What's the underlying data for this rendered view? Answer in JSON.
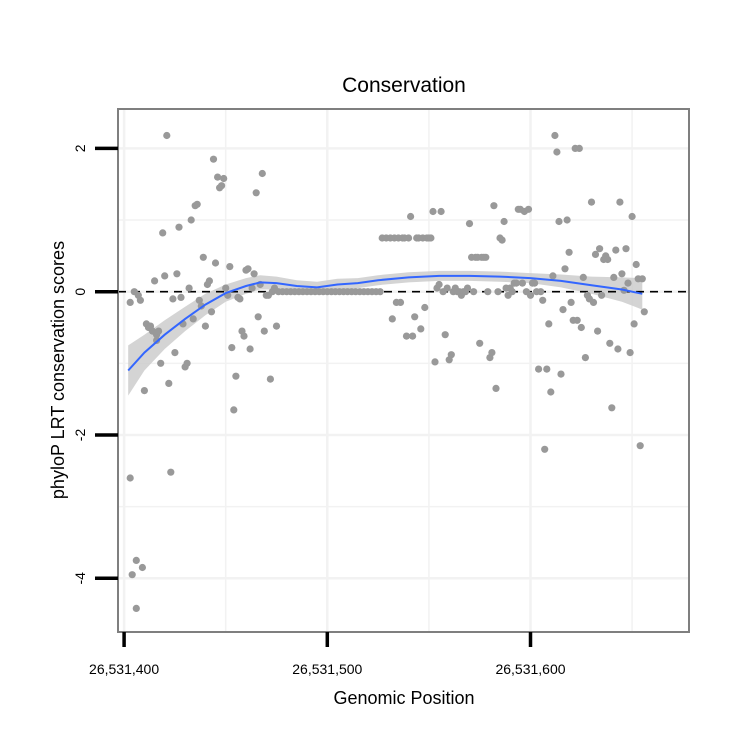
{
  "chart_data": {
    "type": "scatter",
    "title": "Conservation",
    "xlabel": "Genomic Position",
    "ylabel": "phyloP LRT conservation scores",
    "xlim": [
      26531397,
      26531678
    ],
    "ylim": [
      -4.75,
      2.55
    ],
    "x_ticks": [
      {
        "value": 26531400,
        "label": "26,531,400"
      },
      {
        "value": 26531500,
        "label": "26,531,500"
      },
      {
        "value": 26531600,
        "label": "26,531,600"
      }
    ],
    "y_ticks": [
      {
        "value": -4,
        "label": "-4"
      },
      {
        "value": -2,
        "label": "-2"
      },
      {
        "value": 0,
        "label": "0"
      },
      {
        "value": 2,
        "label": "2"
      }
    ],
    "grid": true,
    "reference_line": {
      "y": 0,
      "style": "dashed"
    },
    "colors": {
      "points": "#999999",
      "smooth_line": "#3366ff",
      "confidence_band": "#cccccc",
      "panel_border": "#7f7f7f",
      "gridline": "#f2f2f2"
    },
    "points": [
      {
        "x": 26531403,
        "y": -0.15
      },
      {
        "x": 26531403,
        "y": -2.6
      },
      {
        "x": 26531404,
        "y": -3.95
      },
      {
        "x": 26531405,
        "y": 0.0
      },
      {
        "x": 26531406,
        "y": -4.42
      },
      {
        "x": 26531406,
        "y": -3.75
      },
      {
        "x": 26531407,
        "y": -0.05
      },
      {
        "x": 26531408,
        "y": -0.12
      },
      {
        "x": 26531409,
        "y": -3.85
      },
      {
        "x": 26531410,
        "y": -1.38
      },
      {
        "x": 26531411,
        "y": -0.45
      },
      {
        "x": 26531412,
        "y": -0.5
      },
      {
        "x": 26531413,
        "y": -0.48
      },
      {
        "x": 26531414,
        "y": -0.55
      },
      {
        "x": 26531415,
        "y": 0.15
      },
      {
        "x": 26531416,
        "y": -0.6
      },
      {
        "x": 26531416,
        "y": -0.68
      },
      {
        "x": 26531417,
        "y": -0.55
      },
      {
        "x": 26531418,
        "y": -1.0
      },
      {
        "x": 26531419,
        "y": 0.82
      },
      {
        "x": 26531420,
        "y": 0.22
      },
      {
        "x": 26531421,
        "y": 2.18
      },
      {
        "x": 26531422,
        "y": -1.28
      },
      {
        "x": 26531423,
        "y": -2.52
      },
      {
        "x": 26531424,
        "y": -0.1
      },
      {
        "x": 26531425,
        "y": -0.85
      },
      {
        "x": 26531426,
        "y": 0.25
      },
      {
        "x": 26531427,
        "y": 0.9
      },
      {
        "x": 26531428,
        "y": -0.08
      },
      {
        "x": 26531429,
        "y": -0.45
      },
      {
        "x": 26531430,
        "y": -1.05
      },
      {
        "x": 26531431,
        "y": -1.0
      },
      {
        "x": 26531432,
        "y": 0.05
      },
      {
        "x": 26531433,
        "y": 1.0
      },
      {
        "x": 26531434,
        "y": -0.38
      },
      {
        "x": 26531435,
        "y": 1.2
      },
      {
        "x": 26531436,
        "y": 1.22
      },
      {
        "x": 26531437,
        "y": -0.12
      },
      {
        "x": 26531438,
        "y": -0.2
      },
      {
        "x": 26531439,
        "y": 0.48
      },
      {
        "x": 26531440,
        "y": -0.48
      },
      {
        "x": 26531441,
        "y": 0.1
      },
      {
        "x": 26531442,
        "y": 0.15
      },
      {
        "x": 26531443,
        "y": -0.28
      },
      {
        "x": 26531444,
        "y": 1.85
      },
      {
        "x": 26531445,
        "y": 0.4
      },
      {
        "x": 26531446,
        "y": 1.6
      },
      {
        "x": 26531447,
        "y": 1.45
      },
      {
        "x": 26531448,
        "y": 1.48
      },
      {
        "x": 26531449,
        "y": 1.58
      },
      {
        "x": 26531450,
        "y": 0.05
      },
      {
        "x": 26531451,
        "y": -0.05
      },
      {
        "x": 26531452,
        "y": 0.35
      },
      {
        "x": 26531453,
        "y": -0.78
      },
      {
        "x": 26531454,
        "y": -1.65
      },
      {
        "x": 26531455,
        "y": -1.18
      },
      {
        "x": 26531456,
        "y": -0.08
      },
      {
        "x": 26531457,
        "y": -0.1
      },
      {
        "x": 26531458,
        "y": -0.55
      },
      {
        "x": 26531459,
        "y": -0.62
      },
      {
        "x": 26531460,
        "y": 0.3
      },
      {
        "x": 26531461,
        "y": 0.32
      },
      {
        "x": 26531462,
        "y": -0.8
      },
      {
        "x": 26531463,
        "y": 0.05
      },
      {
        "x": 26531464,
        "y": 0.25
      },
      {
        "x": 26531465,
        "y": 1.38
      },
      {
        "x": 26531466,
        "y": -0.35
      },
      {
        "x": 26531467,
        "y": 0.1
      },
      {
        "x": 26531468,
        "y": 1.65
      },
      {
        "x": 26531469,
        "y": -0.55
      },
      {
        "x": 26531470,
        "y": -0.05
      },
      {
        "x": 26531471,
        "y": -0.05
      },
      {
        "x": 26531472,
        "y": -1.22
      },
      {
        "x": 26531473,
        "y": 0.0
      },
      {
        "x": 26531474,
        "y": 0.05
      },
      {
        "x": 26531475,
        "y": -0.48
      },
      {
        "x": 26531476,
        "y": 0.0
      },
      {
        "x": 26531478,
        "y": 0.0
      },
      {
        "x": 26531480,
        "y": 0.0
      },
      {
        "x": 26531482,
        "y": 0.0
      },
      {
        "x": 26531484,
        "y": 0.0
      },
      {
        "x": 26531486,
        "y": 0.0
      },
      {
        "x": 26531488,
        "y": 0.0
      },
      {
        "x": 26531490,
        "y": 0.0
      },
      {
        "x": 26531492,
        "y": 0.0
      },
      {
        "x": 26531494,
        "y": 0.0
      },
      {
        "x": 26531496,
        "y": 0.0
      },
      {
        "x": 26531498,
        "y": 0.0
      },
      {
        "x": 26531500,
        "y": 0.0
      },
      {
        "x": 26531502,
        "y": 0.0
      },
      {
        "x": 26531504,
        "y": 0.0
      },
      {
        "x": 26531506,
        "y": 0.0
      },
      {
        "x": 26531508,
        "y": 0.0
      },
      {
        "x": 26531510,
        "y": 0.0
      },
      {
        "x": 26531512,
        "y": 0.0
      },
      {
        "x": 26531514,
        "y": 0.0
      },
      {
        "x": 26531516,
        "y": 0.0
      },
      {
        "x": 26531518,
        "y": 0.0
      },
      {
        "x": 26531520,
        "y": 0.0
      },
      {
        "x": 26531522,
        "y": 0.0
      },
      {
        "x": 26531524,
        "y": 0.0
      },
      {
        "x": 26531526,
        "y": 0.0
      },
      {
        "x": 26531527,
        "y": 0.75
      },
      {
        "x": 26531529,
        "y": 0.75
      },
      {
        "x": 26531531,
        "y": 0.75
      },
      {
        "x": 26531532,
        "y": -0.38
      },
      {
        "x": 26531533,
        "y": 0.75
      },
      {
        "x": 26531534,
        "y": -0.15
      },
      {
        "x": 26531535,
        "y": 0.75
      },
      {
        "x": 26531536,
        "y": -0.15
      },
      {
        "x": 26531537,
        "y": 0.75
      },
      {
        "x": 26531538,
        "y": 0.75
      },
      {
        "x": 26531539,
        "y": -0.62
      },
      {
        "x": 26531540,
        "y": 0.75
      },
      {
        "x": 26531541,
        "y": 1.05
      },
      {
        "x": 26531542,
        "y": -0.62
      },
      {
        "x": 26531543,
        "y": -0.35
      },
      {
        "x": 26531544,
        "y": 0.75
      },
      {
        "x": 26531545,
        "y": 0.75
      },
      {
        "x": 26531546,
        "y": -0.52
      },
      {
        "x": 26531547,
        "y": 0.75
      },
      {
        "x": 26531548,
        "y": -0.22
      },
      {
        "x": 26531549,
        "y": 0.75
      },
      {
        "x": 26531550,
        "y": 0.75
      },
      {
        "x": 26531551,
        "y": 0.75
      },
      {
        "x": 26531552,
        "y": 1.12
      },
      {
        "x": 26531553,
        "y": -0.98
      },
      {
        "x": 26531554,
        "y": 0.05
      },
      {
        "x": 26531555,
        "y": 0.1
      },
      {
        "x": 26531556,
        "y": 1.12
      },
      {
        "x": 26531557,
        "y": 0.0
      },
      {
        "x": 26531558,
        "y": -0.6
      },
      {
        "x": 26531559,
        "y": 0.05
      },
      {
        "x": 26531560,
        "y": -0.95
      },
      {
        "x": 26531561,
        "y": -0.88
      },
      {
        "x": 26531562,
        "y": 0.0
      },
      {
        "x": 26531563,
        "y": 0.05
      },
      {
        "x": 26531564,
        "y": 0.0
      },
      {
        "x": 26531565,
        "y": 0.0
      },
      {
        "x": 26531566,
        "y": -0.05
      },
      {
        "x": 26531567,
        "y": 0.0
      },
      {
        "x": 26531568,
        "y": 0.0
      },
      {
        "x": 26531569,
        "y": 0.05
      },
      {
        "x": 26531570,
        "y": 0.95
      },
      {
        "x": 26531571,
        "y": 0.48
      },
      {
        "x": 26531572,
        "y": 0.0
      },
      {
        "x": 26531573,
        "y": 0.48
      },
      {
        "x": 26531574,
        "y": 0.48
      },
      {
        "x": 26531575,
        "y": -0.72
      },
      {
        "x": 26531576,
        "y": 0.48
      },
      {
        "x": 26531577,
        "y": 0.48
      },
      {
        "x": 26531578,
        "y": 0.48
      },
      {
        "x": 26531579,
        "y": 0.0
      },
      {
        "x": 26531580,
        "y": -0.92
      },
      {
        "x": 26531581,
        "y": -0.85
      },
      {
        "x": 26531582,
        "y": 1.2
      },
      {
        "x": 26531583,
        "y": -1.35
      },
      {
        "x": 26531584,
        "y": 0.0
      },
      {
        "x": 26531585,
        "y": 0.75
      },
      {
        "x": 26531586,
        "y": 0.72
      },
      {
        "x": 26531587,
        "y": 0.98
      },
      {
        "x": 26531588,
        "y": 0.05
      },
      {
        "x": 26531589,
        "y": -0.05
      },
      {
        "x": 26531590,
        "y": 0.05
      },
      {
        "x": 26531591,
        "y": 0.0
      },
      {
        "x": 26531592,
        "y": 0.12
      },
      {
        "x": 26531593,
        "y": 0.12
      },
      {
        "x": 26531594,
        "y": 1.15
      },
      {
        "x": 26531595,
        "y": 1.15
      },
      {
        "x": 26531596,
        "y": 0.12
      },
      {
        "x": 26531597,
        "y": 1.12
      },
      {
        "x": 26531598,
        "y": 0.0
      },
      {
        "x": 26531599,
        "y": 1.15
      },
      {
        "x": 26531600,
        "y": -0.05
      },
      {
        "x": 26531601,
        "y": 0.12
      },
      {
        "x": 26531602,
        "y": 0.12
      },
      {
        "x": 26531603,
        "y": 0.0
      },
      {
        "x": 26531604,
        "y": -1.08
      },
      {
        "x": 26531605,
        "y": 0.0
      },
      {
        "x": 26531606,
        "y": -0.12
      },
      {
        "x": 26531607,
        "y": -2.2
      },
      {
        "x": 26531608,
        "y": -1.08
      },
      {
        "x": 26531609,
        "y": -0.45
      },
      {
        "x": 26531610,
        "y": -1.4
      },
      {
        "x": 26531611,
        "y": 0.22
      },
      {
        "x": 26531612,
        "y": 2.18
      },
      {
        "x": 26531613,
        "y": 1.95
      },
      {
        "x": 26531614,
        "y": 0.98
      },
      {
        "x": 26531615,
        "y": -1.15
      },
      {
        "x": 26531616,
        "y": -0.25
      },
      {
        "x": 26531617,
        "y": 0.32
      },
      {
        "x": 26531618,
        "y": 1.0
      },
      {
        "x": 26531619,
        "y": 0.55
      },
      {
        "x": 26531620,
        "y": -0.15
      },
      {
        "x": 26531621,
        "y": -0.4
      },
      {
        "x": 26531622,
        "y": 2.0
      },
      {
        "x": 26531623,
        "y": -0.4
      },
      {
        "x": 26531624,
        "y": 2.0
      },
      {
        "x": 26531625,
        "y": -0.5
      },
      {
        "x": 26531626,
        "y": 0.2
      },
      {
        "x": 26531627,
        "y": -0.92
      },
      {
        "x": 26531628,
        "y": -0.05
      },
      {
        "x": 26531629,
        "y": -0.1
      },
      {
        "x": 26531630,
        "y": 1.25
      },
      {
        "x": 26531631,
        "y": -0.15
      },
      {
        "x": 26531632,
        "y": 0.52
      },
      {
        "x": 26531633,
        "y": -0.55
      },
      {
        "x": 26531634,
        "y": 0.6
      },
      {
        "x": 26531635,
        "y": -0.05
      },
      {
        "x": 26531636,
        "y": 0.45
      },
      {
        "x": 26531637,
        "y": 0.5
      },
      {
        "x": 26531638,
        "y": 0.45
      },
      {
        "x": 26531639,
        "y": -0.72
      },
      {
        "x": 26531640,
        "y": -1.62
      },
      {
        "x": 26531641,
        "y": 0.2
      },
      {
        "x": 26531642,
        "y": 0.58
      },
      {
        "x": 26531643,
        "y": -0.8
      },
      {
        "x": 26531644,
        "y": 1.25
      },
      {
        "x": 26531645,
        "y": 0.25
      },
      {
        "x": 26531646,
        "y": 0.02
      },
      {
        "x": 26531647,
        "y": 0.6
      },
      {
        "x": 26531648,
        "y": 0.12
      },
      {
        "x": 26531649,
        "y": -0.85
      },
      {
        "x": 26531650,
        "y": 1.05
      },
      {
        "x": 26531651,
        "y": -0.45
      },
      {
        "x": 26531652,
        "y": 0.38
      },
      {
        "x": 26531653,
        "y": 0.18
      },
      {
        "x": 26531654,
        "y": -2.15
      },
      {
        "x": 26531655,
        "y": 0.18
      },
      {
        "x": 26531656,
        "y": -0.28
      }
    ],
    "smooth": {
      "x": [
        26531402,
        26531410,
        26531420,
        26531430,
        26531440,
        26531450,
        26531460,
        26531467,
        26531475,
        26531485,
        26531495,
        26531505,
        26531515,
        26531525,
        26531540,
        26531555,
        26531570,
        26531585,
        26531600,
        26531615,
        26531630,
        26531645,
        26531655
      ],
      "y": [
        -1.1,
        -0.85,
        -0.6,
        -0.38,
        -0.18,
        -0.02,
        0.08,
        0.13,
        0.12,
        0.08,
        0.06,
        0.1,
        0.12,
        0.16,
        0.2,
        0.22,
        0.22,
        0.21,
        0.19,
        0.15,
        0.09,
        0.03,
        -0.03
      ],
      "lower": [
        -1.45,
        -1.1,
        -0.8,
        -0.55,
        -0.33,
        -0.14,
        -0.03,
        0.03,
        0.03,
        0.0,
        -0.02,
        0.02,
        0.05,
        0.09,
        0.13,
        0.15,
        0.15,
        0.14,
        0.12,
        0.06,
        -0.03,
        -0.14,
        -0.25
      ],
      "upper": [
        -0.75,
        -0.6,
        -0.4,
        -0.21,
        -0.03,
        0.1,
        0.19,
        0.23,
        0.21,
        0.16,
        0.14,
        0.18,
        0.19,
        0.23,
        0.27,
        0.29,
        0.29,
        0.28,
        0.26,
        0.24,
        0.21,
        0.2,
        0.19
      ]
    }
  }
}
